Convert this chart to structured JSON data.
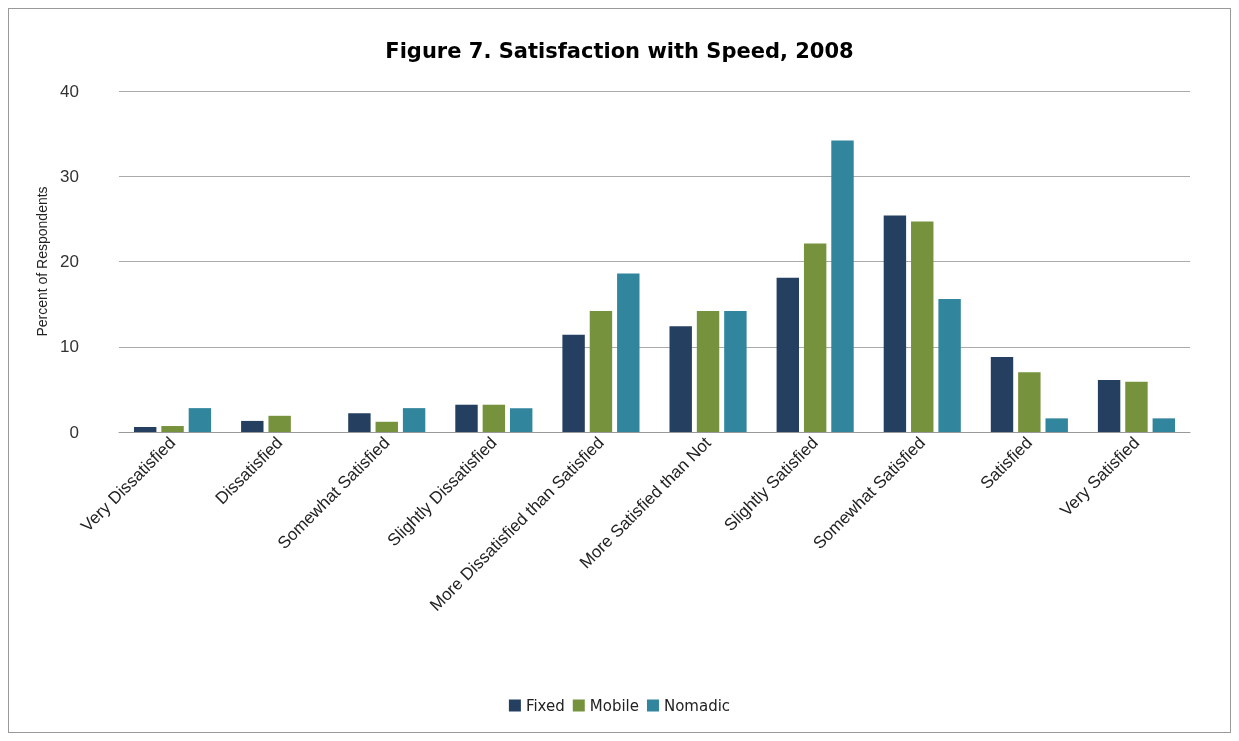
{
  "chart_data": {
    "type": "bar",
    "title": "Figure 7. Satisfaction with Speed, 2008",
    "ylabel": "Percent of Respondents",
    "categories": [
      "Very Dissatisfied",
      "Dissatisfied",
      "Somewhat Satisfied",
      "Slightly Dissatisfied",
      "More Dissatisfied than Satisfied",
      "More Satisfied than Not",
      "Slightly Satisfied",
      "Somewhat Satisfied",
      "Satisfied",
      "Very Satisfied"
    ],
    "series": [
      {
        "name": "Fixed",
        "color": "#243f60",
        "values": [
          0.6,
          1.3,
          2.2,
          3.2,
          11.4,
          12.4,
          18.1,
          25.4,
          8.8,
          6.1
        ]
      },
      {
        "name": "Mobile",
        "color": "#76923c",
        "values": [
          0.7,
          1.9,
          1.2,
          3.2,
          14.2,
          14.2,
          22.1,
          24.7,
          7.0,
          5.9
        ]
      },
      {
        "name": "Nomadic",
        "color": "#31859c",
        "values": [
          2.8,
          0,
          2.8,
          2.8,
          18.6,
          14.2,
          34.2,
          15.6,
          1.6,
          1.6
        ]
      }
    ],
    "ylim": [
      0,
      40
    ],
    "yticks": [
      0,
      10,
      20,
      30,
      40
    ],
    "grid": "y",
    "legend": "bottom"
  }
}
